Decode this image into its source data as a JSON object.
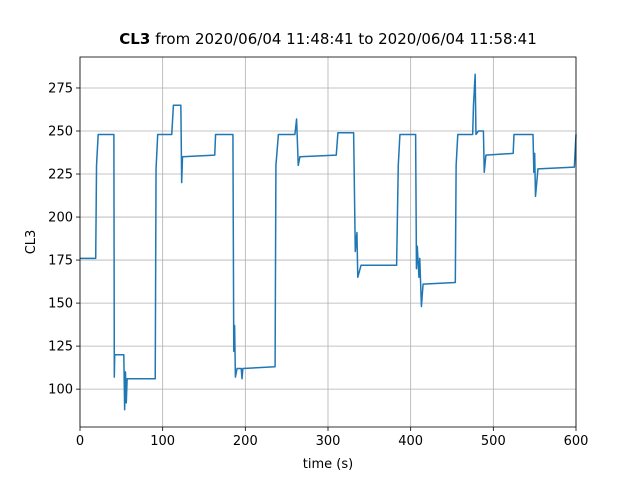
{
  "chart_data": {
    "type": "line",
    "title": [
      "CL3",
      "from 2020/06/04 11:48:41 to 2020/06/04 11:58:41"
    ],
    "xlabel": "time (s)",
    "ylabel": "CL3",
    "xlim": [
      0,
      600
    ],
    "ylim": [
      78,
      293
    ],
    "xticks": [
      0,
      100,
      200,
      300,
      400,
      500,
      600
    ],
    "yticks": [
      100,
      125,
      150,
      175,
      200,
      225,
      250,
      275
    ],
    "grid": true,
    "x": [
      0,
      19,
      20,
      22,
      41,
      41.5,
      42,
      53,
      54,
      55,
      56,
      57,
      91,
      92,
      94,
      111,
      113,
      122,
      123,
      124,
      163,
      164,
      185,
      186,
      187,
      188,
      190,
      195,
      196,
      197,
      236,
      237,
      240,
      260,
      262,
      264,
      266,
      310,
      312,
      331,
      333,
      335,
      336,
      340,
      383,
      385,
      387,
      406,
      407,
      408,
      410,
      411,
      413,
      415,
      454,
      455,
      457,
      475,
      476,
      478,
      479,
      482,
      488,
      489,
      491,
      524,
      525,
      548,
      549,
      550,
      551,
      554,
      598,
      600
    ],
    "series": [
      {
        "name": "CL3",
        "color": "#1f77b4",
        "values": [
          176,
          176,
          230,
          248,
          248,
          107,
          120,
          120,
          88,
          110,
          92,
          106,
          106,
          228,
          248,
          248,
          265,
          265,
          220,
          235,
          236,
          248,
          248,
          122,
          137,
          107,
          112,
          112,
          106,
          112,
          113,
          230,
          248,
          248,
          257,
          230,
          235,
          236,
          249,
          249,
          180,
          191,
          165,
          172,
          172,
          230,
          248,
          248,
          170,
          183,
          165,
          176,
          148,
          161,
          162,
          230,
          248,
          248,
          265,
          283,
          248,
          250,
          250,
          226,
          236,
          237,
          248,
          248,
          226,
          237,
          212,
          228,
          229,
          248
        ]
      }
    ]
  }
}
